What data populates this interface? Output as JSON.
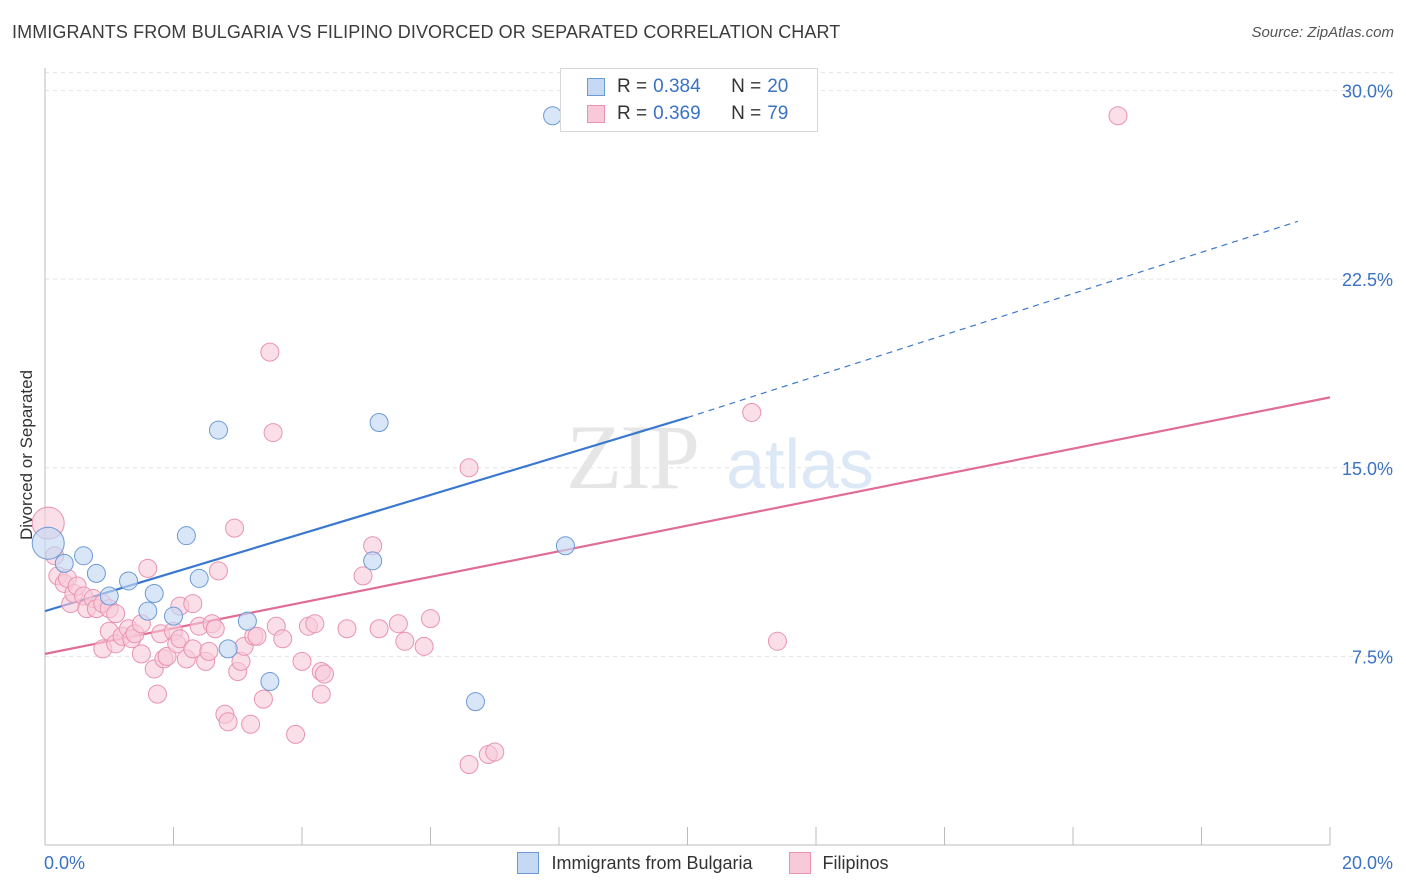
{
  "title": "IMMIGRANTS FROM BULGARIA VS FILIPINO DIVORCED OR SEPARATED CORRELATION CHART",
  "source": "Source: ZipAtlas.com",
  "watermark": {
    "zip": "ZIP",
    "atlas": "atlas"
  },
  "legend": {
    "rows": [
      {
        "r_label": "R =",
        "r_value": "0.384",
        "n_label": "N =",
        "n_value": "20"
      },
      {
        "r_label": "R =",
        "r_value": "0.369",
        "n_label": "N =",
        "n_value": "79"
      }
    ]
  },
  "colors": {
    "bulgaria_fill": "#c5d9f5",
    "bulgaria_stroke": "#6d9ad6",
    "bulgaria_line": "#3a78cf",
    "filipino_fill": "#f8c9d8",
    "filipino_stroke": "#e993b0",
    "filipino_line": "#e06d98",
    "tick_label": "#3a72c4",
    "grid": "#e3e3e3"
  },
  "chart_data": {
    "type": "scatter",
    "title": "IMMIGRANTS FROM BULGARIA VS FILIPINO DIVORCED OR SEPARATED CORRELATION CHART",
    "xlabel": "",
    "ylabel": "Divorced or Separated",
    "xlim": [
      0,
      20
    ],
    "ylim": [
      0,
      30.5
    ],
    "x_tick_labels": [
      "0.0%",
      "20.0%"
    ],
    "y_ticks": [
      7.5,
      15.0,
      22.5,
      30.0
    ],
    "y_tick_labels": [
      "7.5%",
      "15.0%",
      "22.5%",
      "30.0%"
    ],
    "grid": "horizontal dashed",
    "legend_placement": "top-center and bottom",
    "series": [
      {
        "name": "Immigrants from Bulgaria",
        "R": 0.384,
        "N": 20,
        "trend": {
          "x0": 0,
          "y0": 9.3,
          "x1": 10,
          "y1": 17.0,
          "dash_to_x": 19.5,
          "dash_to_y": 24.8
        },
        "points": [
          [
            0.05,
            12.0
          ],
          [
            0.3,
            11.2
          ],
          [
            0.6,
            11.5
          ],
          [
            0.8,
            10.8
          ],
          [
            1.0,
            9.9
          ],
          [
            1.3,
            10.5
          ],
          [
            1.6,
            9.3
          ],
          [
            1.7,
            10.0
          ],
          [
            2.0,
            9.1
          ],
          [
            2.2,
            12.3
          ],
          [
            2.4,
            10.6
          ],
          [
            2.7,
            16.5
          ],
          [
            2.85,
            7.8
          ],
          [
            3.15,
            8.9
          ],
          [
            3.5,
            6.5
          ],
          [
            5.2,
            16.8
          ],
          [
            5.1,
            11.3
          ],
          [
            6.7,
            5.7
          ],
          [
            8.1,
            11.9
          ],
          [
            7.9,
            29.0
          ]
        ]
      },
      {
        "name": "Filipinos",
        "R": 0.369,
        "N": 79,
        "trend": {
          "x0": 0,
          "y0": 7.6,
          "x1": 20,
          "y1": 17.8
        },
        "points": [
          [
            0.05,
            12.8
          ],
          [
            0.15,
            11.5
          ],
          [
            0.2,
            10.7
          ],
          [
            0.3,
            10.4
          ],
          [
            0.35,
            10.6
          ],
          [
            0.4,
            9.6
          ],
          [
            0.45,
            10.0
          ],
          [
            0.5,
            10.3
          ],
          [
            0.6,
            9.9
          ],
          [
            0.65,
            9.4
          ],
          [
            0.75,
            9.8
          ],
          [
            0.8,
            9.4
          ],
          [
            0.9,
            9.6
          ],
          [
            0.9,
            7.8
          ],
          [
            1.0,
            9.4
          ],
          [
            1.0,
            8.5
          ],
          [
            1.1,
            9.2
          ],
          [
            1.1,
            8.0
          ],
          [
            1.2,
            8.3
          ],
          [
            1.3,
            8.6
          ],
          [
            1.35,
            8.2
          ],
          [
            1.4,
            8.4
          ],
          [
            1.5,
            8.8
          ],
          [
            1.5,
            7.6
          ],
          [
            1.6,
            11.0
          ],
          [
            1.7,
            7.0
          ],
          [
            1.75,
            6.0
          ],
          [
            1.8,
            8.4
          ],
          [
            1.85,
            7.4
          ],
          [
            1.9,
            7.5
          ],
          [
            2.0,
            8.5
          ],
          [
            2.05,
            8.0
          ],
          [
            2.1,
            9.5
          ],
          [
            2.1,
            8.2
          ],
          [
            2.2,
            7.4
          ],
          [
            2.3,
            7.8
          ],
          [
            2.3,
            9.6
          ],
          [
            2.4,
            8.7
          ],
          [
            2.5,
            7.3
          ],
          [
            2.55,
            7.7
          ],
          [
            2.6,
            8.8
          ],
          [
            2.65,
            8.6
          ],
          [
            2.7,
            10.9
          ],
          [
            2.8,
            5.2
          ],
          [
            2.85,
            4.9
          ],
          [
            2.95,
            12.6
          ],
          [
            3.0,
            6.9
          ],
          [
            3.05,
            7.3
          ],
          [
            3.1,
            7.9
          ],
          [
            3.2,
            4.8
          ],
          [
            3.25,
            8.3
          ],
          [
            3.3,
            8.3
          ],
          [
            3.4,
            5.8
          ],
          [
            3.5,
            19.6
          ],
          [
            3.55,
            16.4
          ],
          [
            3.6,
            8.7
          ],
          [
            3.7,
            8.2
          ],
          [
            3.9,
            4.4
          ],
          [
            4.0,
            7.3
          ],
          [
            4.1,
            8.7
          ],
          [
            4.2,
            8.8
          ],
          [
            4.3,
            6.9
          ],
          [
            4.3,
            6.0
          ],
          [
            4.35,
            6.8
          ],
          [
            4.7,
            8.6
          ],
          [
            4.95,
            10.7
          ],
          [
            5.1,
            11.9
          ],
          [
            5.2,
            8.6
          ],
          [
            5.5,
            8.8
          ],
          [
            5.6,
            8.1
          ],
          [
            5.9,
            7.9
          ],
          [
            6.0,
            9.0
          ],
          [
            6.6,
            15.0
          ],
          [
            6.6,
            3.2
          ],
          [
            6.9,
            3.6
          ],
          [
            7.0,
            3.7
          ],
          [
            11.0,
            17.2
          ],
          [
            11.4,
            8.1
          ],
          [
            16.7,
            29.0
          ]
        ]
      }
    ]
  },
  "x_axis": {
    "left_label": "0.0%",
    "right_label": "20.0%"
  },
  "bottom_legend": {
    "items": [
      "Immigrants from Bulgaria",
      "Filipinos"
    ]
  }
}
